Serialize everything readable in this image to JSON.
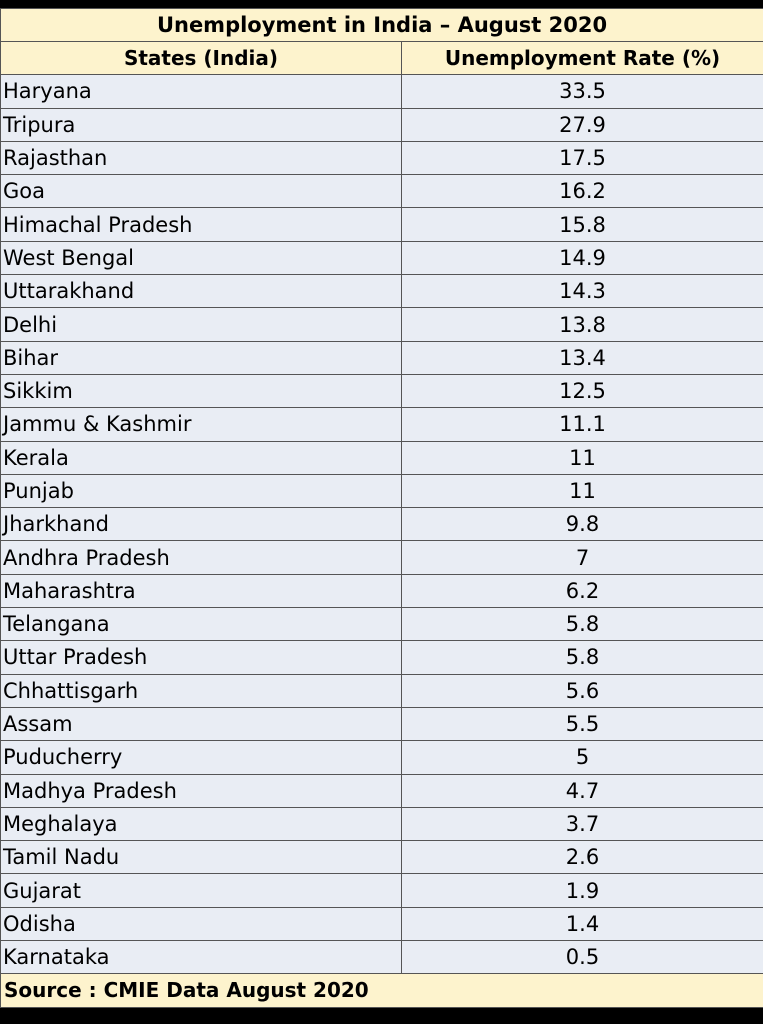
{
  "title": "Unemployment in India – August 2020",
  "headers": [
    "States (India)",
    "Unemployment Rate (%)"
  ],
  "rows": [
    [
      "Haryana",
      "33.5"
    ],
    [
      "Tripura",
      "27.9"
    ],
    [
      "Rajasthan",
      "17.5"
    ],
    [
      "Goa",
      "16.2"
    ],
    [
      "Himachal Pradesh",
      "15.8"
    ],
    [
      "West Bengal",
      "14.9"
    ],
    [
      "Uttarakhand",
      "14.3"
    ],
    [
      "Delhi",
      "13.8"
    ],
    [
      "Bihar",
      "13.4"
    ],
    [
      "Sikkim",
      "12.5"
    ],
    [
      "Jammu & Kashmir",
      "11.1"
    ],
    [
      "Kerala",
      "11"
    ],
    [
      "Punjab",
      "11"
    ],
    [
      "Jharkhand",
      "9.8"
    ],
    [
      "Andhra Pradesh",
      "7"
    ],
    [
      "Maharashtra",
      "6.2"
    ],
    [
      "Telangana",
      "5.8"
    ],
    [
      "Uttar Pradesh",
      "5.8"
    ],
    [
      "Chhattisgarh",
      "5.6"
    ],
    [
      "Assam",
      "5.5"
    ],
    [
      "Puducherry",
      "5"
    ],
    [
      "Madhya Pradesh",
      "4.7"
    ],
    [
      "Meghalaya",
      "3.7"
    ],
    [
      "Tamil Nadu",
      "2.6"
    ],
    [
      "Gujarat",
      "1.9"
    ],
    [
      "Odisha",
      "1.4"
    ],
    [
      "Karnataka",
      "0.5"
    ]
  ],
  "source": "Source : CMIE Data August 2020",
  "colors": {
    "header_bg": "#fdf3cd",
    "body_bg": "#e9edf4",
    "frame": "#000000",
    "border": "#555555"
  }
}
